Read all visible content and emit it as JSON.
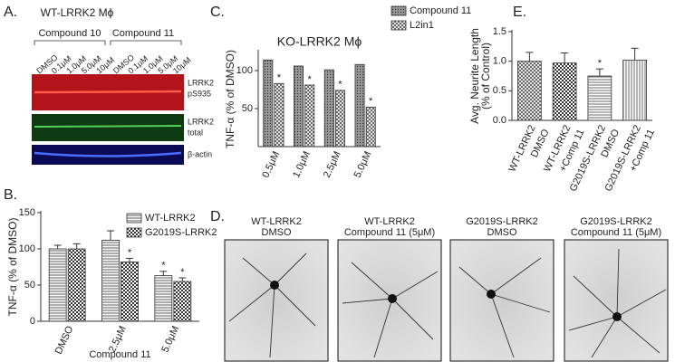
{
  "panel_labels": [
    "A.",
    "B.",
    "C.",
    "D.",
    "E."
  ],
  "blot": {
    "title": "WT-LRRK2 Mϕ",
    "groups": [
      "Compound 10",
      "Compound 11"
    ],
    "lanes": [
      "DMSO",
      "0.1μM",
      "1.0μM",
      "5.0μM",
      "10μM",
      "DMSO",
      "0.1μM",
      "1.0μM",
      "5.0μM",
      "10μM"
    ],
    "bands": [
      [
        "LRRK2",
        "pS935"
      ],
      [
        "LRRK2",
        "total"
      ],
      [
        "β-actin"
      ]
    ]
  },
  "micrographs": [
    [
      "WT-LRRK2",
      "DMSO"
    ],
    [
      "WT-LRRK2",
      "Compound 11 (5μM)"
    ],
    [
      "G2019S-LRRK2",
      "DMSO"
    ],
    [
      "G2019S-LRRK2",
      "Compound 11 (5μM)"
    ]
  ],
  "chart_data": [
    {
      "type": "bar",
      "ylabel": "TNF-α (% of DMSO)",
      "xlabel": "Compound 11",
      "categories": [
        "DMSO",
        "2.5μM",
        "5.0μM"
      ],
      "series": [
        {
          "name": "WT-LRRK2",
          "color": "#f4f4f4",
          "pattern": "horizontal",
          "values": [
            100,
            112,
            63
          ],
          "errors": [
            5,
            13,
            6
          ],
          "markers": [
            null,
            null,
            "*"
          ]
        },
        {
          "name": "G2019S-LRRK2",
          "color": "#ffffff",
          "pattern": "checker",
          "values": [
            100,
            82,
            55
          ],
          "errors": [
            7,
            5,
            5
          ],
          "markers": [
            null,
            "*",
            "*"
          ]
        }
      ],
      "ylim": [
        0,
        150
      ],
      "yticks": [
        0,
        50,
        100,
        150
      ],
      "legend": "upper right"
    },
    {
      "type": "bar",
      "title": "KO-LRRK2 Mϕ",
      "ylabel": "TNF-α (% of DMSO)",
      "categories": [
        "0.5μM",
        "1.0μM",
        "2.5μM",
        "5.0μM"
      ],
      "series": [
        {
          "name": "Compound 11",
          "color": "#9a9a9a",
          "pattern": "dots",
          "values": [
            114,
            106,
            101,
            108
          ]
        },
        {
          "name": "L2in1",
          "color": "#ffffff",
          "pattern": "crosshatch",
          "values": [
            83,
            81,
            74,
            52
          ],
          "markers": [
            "*",
            "*",
            "*",
            "*"
          ]
        }
      ],
      "ylim": [
        0,
        125
      ],
      "yticks": [
        50,
        100
      ],
      "legend": "outside right"
    },
    {
      "type": "bar",
      "ylabel": [
        "Avg. Neurite Length",
        "(% of Control)"
      ],
      "categories": [
        [
          "WT-LRRK2",
          "DMSO"
        ],
        [
          "WT-LRRK2",
          "+Comp 11"
        ],
        [
          "G2019S-LRRK2",
          "DMSO"
        ],
        [
          "G2019S-LRRK2",
          "+Comp 11"
        ]
      ],
      "values": [
        1.0,
        0.97,
        0.75,
        1.02
      ],
      "errors": [
        0.15,
        0.17,
        0.12,
        0.2
      ],
      "markers": [
        null,
        null,
        "*",
        null
      ],
      "color": "#ffffff",
      "patterns": [
        "crosshatch",
        "checker",
        "horizontal",
        "vertical"
      ],
      "ylim": [
        0,
        1.5
      ],
      "yticks": [
        {
          "value": 0,
          "label": "0.0"
        },
        0.5,
        {
          "value": 1,
          "label": "1.0"
        },
        1.5
      ]
    }
  ]
}
